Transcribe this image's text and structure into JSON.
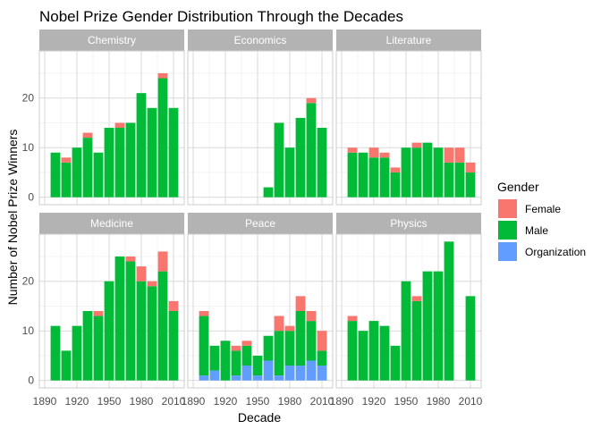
{
  "chart_data": {
    "type": "bar",
    "stacked": true,
    "faceted": true,
    "title": "Nobel Prize Gender Distribution Through the Decades",
    "xlabel": "Decade",
    "ylabel": "Number of Nobel Prize Winners",
    "x_ticks": [
      "1890",
      "1920",
      "1950",
      "1980",
      "2010"
    ],
    "x_tick_values": [
      1890,
      1920,
      1950,
      1980,
      2010
    ],
    "xlim": [
      1885,
      2020
    ],
    "y_ticks": [
      "0",
      "10",
      "20"
    ],
    "y_tick_values": [
      0,
      10,
      20
    ],
    "ylim": [
      -1.5,
      29.5
    ],
    "grid": true,
    "legend": {
      "title": "Gender",
      "position": "right",
      "entries": [
        {
          "label": "Female",
          "color": "#F8766D"
        },
        {
          "label": "Male",
          "color": "#00BA38"
        },
        {
          "label": "Organization",
          "color": "#619CFF"
        }
      ]
    },
    "decades": [
      1900,
      1910,
      1920,
      1930,
      1940,
      1950,
      1960,
      1970,
      1980,
      1990,
      2000,
      2010
    ],
    "stack_order": [
      "Organization",
      "Male",
      "Female"
    ],
    "facets": [
      {
        "name": "Chemistry",
        "Female": [
          0,
          1,
          0,
          1,
          0,
          0,
          1,
          0,
          0,
          0,
          1,
          0
        ],
        "Male": [
          9,
          7,
          10,
          12,
          9,
          14,
          14,
          15,
          21,
          18,
          24,
          18
        ],
        "Organization": [
          0,
          0,
          0,
          0,
          0,
          0,
          0,
          0,
          0,
          0,
          0,
          0
        ]
      },
      {
        "name": "Economics",
        "Female": [
          0,
          0,
          0,
          0,
          0,
          0,
          0,
          0,
          0,
          0,
          1,
          0
        ],
        "Male": [
          0,
          0,
          0,
          0,
          0,
          0,
          2,
          15,
          10,
          16,
          19,
          14
        ],
        "Organization": [
          0,
          0,
          0,
          0,
          0,
          0,
          0,
          0,
          0,
          0,
          0,
          0
        ]
      },
      {
        "name": "Literature",
        "Female": [
          1,
          0,
          2,
          1,
          1,
          0,
          1,
          0,
          0,
          3,
          3,
          2
        ],
        "Male": [
          9,
          9,
          8,
          8,
          5,
          10,
          10,
          11,
          10,
          7,
          7,
          5
        ],
        "Organization": [
          0,
          0,
          0,
          0,
          0,
          0,
          0,
          0,
          0,
          0,
          0,
          0
        ]
      },
      {
        "name": "Medicine",
        "Female": [
          0,
          0,
          0,
          0,
          1,
          0,
          0,
          1,
          3,
          1,
          4,
          2
        ],
        "Male": [
          11,
          6,
          11,
          14,
          13,
          20,
          25,
          24,
          20,
          19,
          22,
          14
        ],
        "Organization": [
          0,
          0,
          0,
          0,
          0,
          0,
          0,
          0,
          0,
          0,
          0,
          0
        ]
      },
      {
        "name": "Peace",
        "Female": [
          1,
          0,
          0,
          1,
          1,
          0,
          0,
          3,
          1,
          3,
          2,
          4
        ],
        "Male": [
          12,
          5,
          8,
          5,
          4,
          4,
          5,
          9,
          7,
          11,
          8,
          3
        ],
        "Organization": [
          1,
          2,
          0,
          1,
          3,
          1,
          4,
          1,
          3,
          3,
          4,
          3
        ]
      },
      {
        "name": "Physics",
        "Female": [
          1,
          0,
          0,
          0,
          0,
          0,
          1,
          0,
          0,
          0,
          0,
          0
        ],
        "Male": [
          12,
          10,
          12,
          11,
          7,
          20,
          16,
          22,
          22,
          28,
          0,
          17
        ],
        "Organization": [
          0,
          0,
          0,
          0,
          0,
          0,
          0,
          0,
          0,
          0,
          0,
          0
        ]
      }
    ]
  }
}
